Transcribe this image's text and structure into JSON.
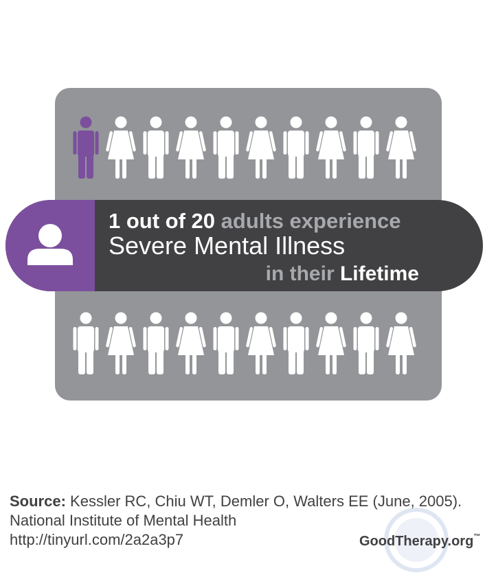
{
  "headline": {
    "count": "1 out of 20",
    "rest": "adults experience"
  },
  "subhead": "Severe Mental Illness",
  "tagline": {
    "prefix": "in their",
    "emphasis": "Lifetime"
  },
  "source": {
    "label": "Source:",
    "citation": "Kessler RC, Chiu WT, Demler O, Walters EE (June, 2005).",
    "publisher": "National Institute of Mental Health",
    "url": "http://tinyurl.com/2a2a3p7"
  },
  "logo": {
    "name": "GoodTherapy.org",
    "mark": "™"
  }
}
